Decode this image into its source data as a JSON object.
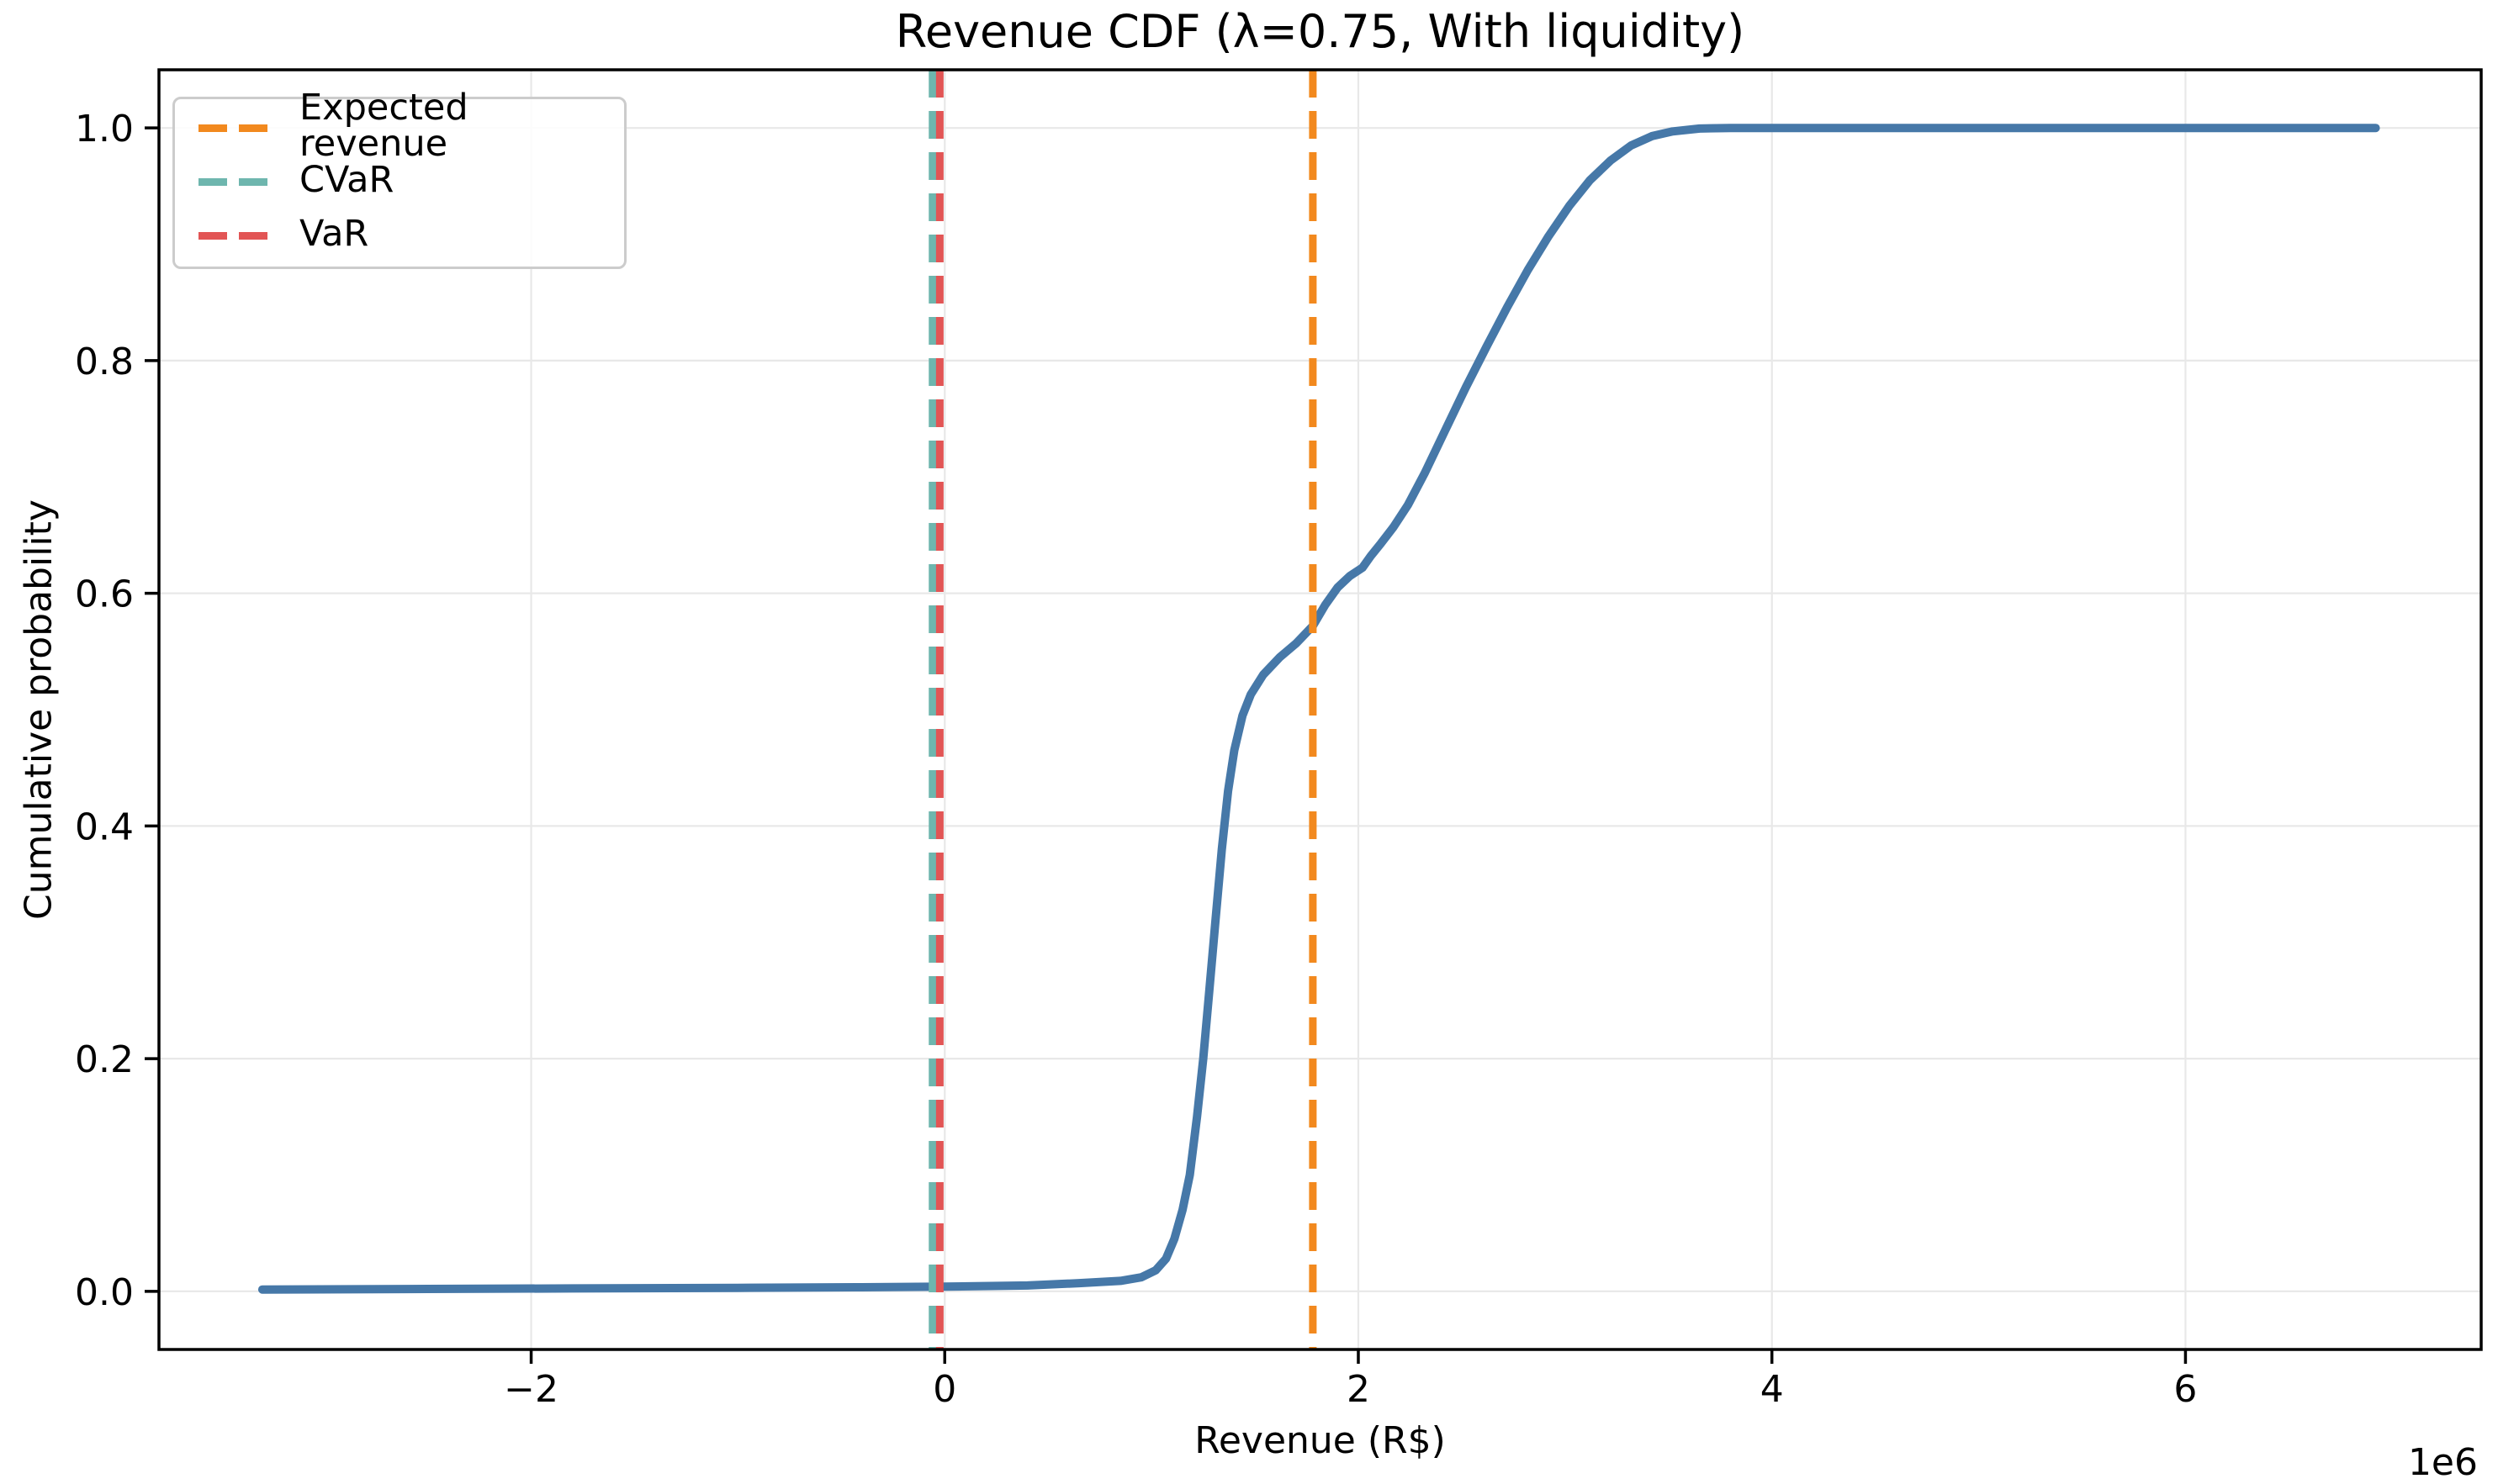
{
  "figure": {
    "background": "#ffffff"
  },
  "chart_data": {
    "type": "line",
    "title": "Revenue CDF (λ=0.75, With liquidity)",
    "xlabel": "Revenue (R$)",
    "ylabel": "Cumulative probability",
    "x_offset_label": "1e6",
    "x_unit_multiplier": 1000000,
    "xlim": [
      -3800000,
      7430000
    ],
    "ylim": [
      -0.05,
      1.05
    ],
    "x_ticks": [
      -2000000,
      0,
      2000000,
      4000000,
      6000000
    ],
    "x_tick_labels": [
      "−2",
      "0",
      "2",
      "4",
      "6"
    ],
    "y_ticks": [
      0.0,
      0.2,
      0.4,
      0.6,
      0.8,
      1.0
    ],
    "y_tick_labels": [
      "0.0",
      "0.2",
      "0.4",
      "0.6",
      "0.8",
      "1.0"
    ],
    "grid": true,
    "grid_color": "#e8e8e8",
    "spine_color": "#000000",
    "legend_position": "upper left",
    "series": [
      {
        "name": "Revenue CDF",
        "color": "#4678a8",
        "line_style": "solid",
        "line_width": 10,
        "points": [
          [
            -3300000,
            0.0015
          ],
          [
            -2600000,
            0.002
          ],
          [
            -1800000,
            0.0025
          ],
          [
            -1000000,
            0.003
          ],
          [
            -400000,
            0.0035
          ],
          [
            0,
            0.004
          ],
          [
            400000,
            0.005
          ],
          [
            650000,
            0.007
          ],
          [
            850000,
            0.009
          ],
          [
            950000,
            0.012
          ],
          [
            1020000,
            0.018
          ],
          [
            1070000,
            0.028
          ],
          [
            1110000,
            0.045
          ],
          [
            1150000,
            0.07
          ],
          [
            1185000,
            0.1
          ],
          [
            1220000,
            0.15
          ],
          [
            1250000,
            0.2
          ],
          [
            1280000,
            0.26
          ],
          [
            1310000,
            0.32
          ],
          [
            1340000,
            0.38
          ],
          [
            1370000,
            0.43
          ],
          [
            1400000,
            0.465
          ],
          [
            1440000,
            0.495
          ],
          [
            1480000,
            0.513
          ],
          [
            1540000,
            0.53
          ],
          [
            1620000,
            0.545
          ],
          [
            1700000,
            0.557
          ],
          [
            1780000,
            0.572
          ],
          [
            1840000,
            0.59
          ],
          [
            1900000,
            0.605
          ],
          [
            1960000,
            0.615
          ],
          [
            2020000,
            0.622
          ],
          [
            2060000,
            0.632
          ],
          [
            2110000,
            0.643
          ],
          [
            2170000,
            0.657
          ],
          [
            2240000,
            0.676
          ],
          [
            2320000,
            0.703
          ],
          [
            2420000,
            0.74
          ],
          [
            2520000,
            0.777
          ],
          [
            2620000,
            0.812
          ],
          [
            2720000,
            0.846
          ],
          [
            2820000,
            0.878
          ],
          [
            2920000,
            0.907
          ],
          [
            3020000,
            0.933
          ],
          [
            3120000,
            0.955
          ],
          [
            3220000,
            0.972
          ],
          [
            3320000,
            0.985
          ],
          [
            3420000,
            0.993
          ],
          [
            3520000,
            0.997
          ],
          [
            3650000,
            0.9995
          ],
          [
            3800000,
            1.0
          ],
          [
            4600000,
            1.0
          ],
          [
            5800000,
            1.0
          ],
          [
            6920000,
            1.0
          ]
        ]
      }
    ],
    "vlines": [
      {
        "label": "CVaR",
        "x": -59000,
        "color": "#6eb6ae",
        "line_style": "dashed",
        "line_width": 9
      },
      {
        "label": "VaR",
        "x": -24000,
        "color": "#e25555",
        "line_style": "dashed",
        "line_width": 9
      },
      {
        "label": "Expected revenue",
        "x": 1780000,
        "color": "#f2891e",
        "line_style": "dashed",
        "line_width": 9
      }
    ],
    "legend": [
      {
        "label": "Expected revenue",
        "color": "#f2891e"
      },
      {
        "label": "CVaR",
        "color": "#6eb6ae"
      },
      {
        "label": "VaR",
        "color": "#e25555"
      }
    ]
  }
}
